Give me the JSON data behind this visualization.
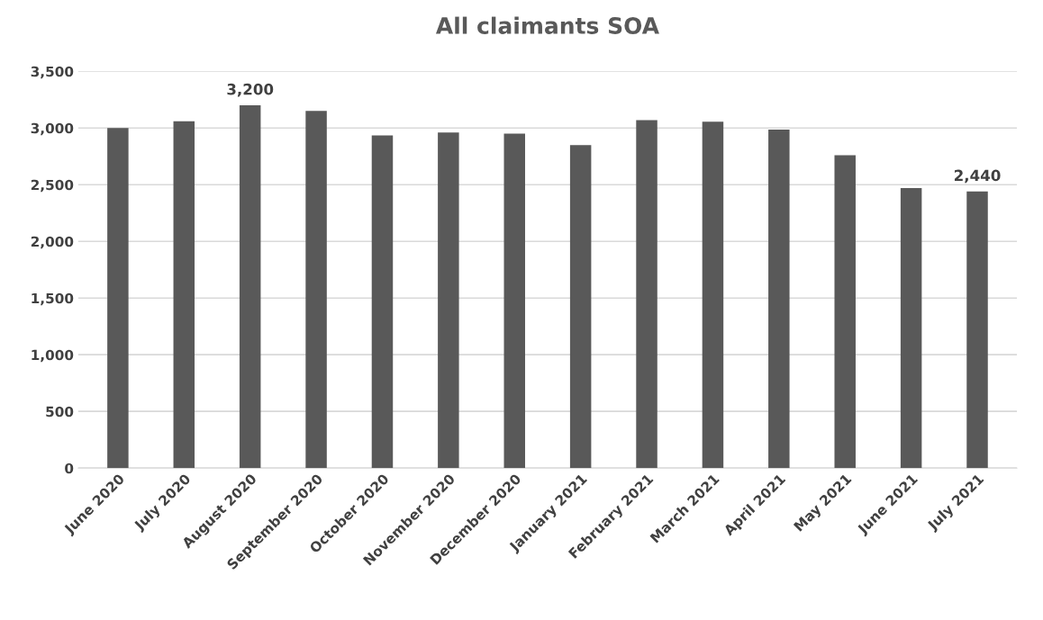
{
  "chart_data": {
    "type": "bar",
    "title": "All claimants SOA",
    "categories": [
      "June 2020",
      "July 2020",
      "August 2020",
      "September 2020",
      "October 2020",
      "November 2020",
      "December 2020",
      "January 2021",
      "February 2021",
      "March 2021",
      "April 2021",
      "May 2021",
      "June 2021",
      "July 2021"
    ],
    "values": [
      3000,
      3060,
      3200,
      3150,
      2935,
      2960,
      2950,
      2850,
      3070,
      3055,
      2985,
      2760,
      2470,
      2440
    ],
    "value_labels": [
      null,
      null,
      "3,200",
      null,
      null,
      null,
      null,
      null,
      null,
      null,
      null,
      null,
      null,
      "2,440"
    ],
    "color": "#595959",
    "ylim": [
      0,
      3500
    ],
    "yticks": [
      {
        "value": 0,
        "label": "0"
      },
      {
        "value": 500,
        "label": "500"
      },
      {
        "value": 1000,
        "label": "1,000"
      },
      {
        "value": 1500,
        "label": "1,500"
      },
      {
        "value": 2000,
        "label": "2,000"
      },
      {
        "value": 2500,
        "label": "2,500"
      },
      {
        "value": 3000,
        "label": "3,000"
      },
      {
        "value": 3500,
        "label": "3,500"
      }
    ],
    "grid": "y",
    "legend": false
  }
}
